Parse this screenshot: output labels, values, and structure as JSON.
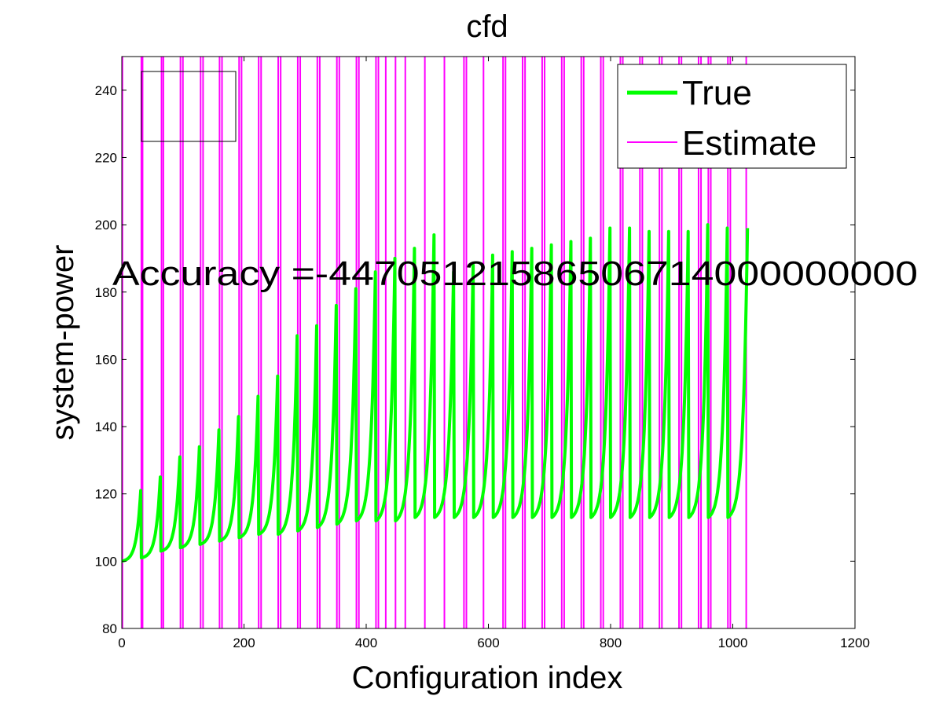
{
  "chart_data": {
    "type": "line",
    "title": "cfd",
    "xlabel": "Configuration index",
    "ylabel": "system-power",
    "xlim": [
      0,
      1200
    ],
    "ylim": [
      80,
      250
    ],
    "xticks": [
      0,
      200,
      400,
      600,
      800,
      1000,
      1200
    ],
    "yticks": [
      80,
      100,
      120,
      140,
      160,
      180,
      200,
      220,
      240
    ],
    "legend_position": "top-right",
    "annotation": "Accuracy =-44705121586506714000000000",
    "series": [
      {
        "name": "True",
        "color": "#00ff00",
        "style": "sawtooth",
        "x_end": 1024,
        "segments": [
          {
            "start": 0,
            "end": 31,
            "low": 100,
            "high": 121
          },
          {
            "start": 32,
            "end": 63,
            "low": 101,
            "high": 125
          },
          {
            "start": 64,
            "end": 95,
            "low": 103,
            "high": 131
          },
          {
            "start": 96,
            "end": 127,
            "low": 104,
            "high": 134
          },
          {
            "start": 128,
            "end": 159,
            "low": 105,
            "high": 139
          },
          {
            "start": 160,
            "end": 191,
            "low": 106,
            "high": 143
          },
          {
            "start": 192,
            "end": 223,
            "low": 107,
            "high": 149
          },
          {
            "start": 224,
            "end": 255,
            "low": 108,
            "high": 155
          },
          {
            "start": 256,
            "end": 287,
            "low": 108,
            "high": 167
          },
          {
            "start": 288,
            "end": 319,
            "low": 109,
            "high": 170
          },
          {
            "start": 320,
            "end": 351,
            "low": 110,
            "high": 176
          },
          {
            "start": 352,
            "end": 383,
            "low": 111,
            "high": 181
          },
          {
            "start": 384,
            "end": 415,
            "low": 112,
            "high": 186
          },
          {
            "start": 416,
            "end": 447,
            "low": 112,
            "high": 190
          },
          {
            "start": 448,
            "end": 479,
            "low": 112,
            "high": 193
          },
          {
            "start": 480,
            "end": 511,
            "low": 113,
            "high": 197
          },
          {
            "start": 512,
            "end": 543,
            "low": 113,
            "high": 186
          },
          {
            "start": 544,
            "end": 575,
            "low": 113,
            "high": 188
          },
          {
            "start": 576,
            "end": 607,
            "low": 113,
            "high": 191
          },
          {
            "start": 608,
            "end": 639,
            "low": 113,
            "high": 192
          },
          {
            "start": 640,
            "end": 671,
            "low": 113,
            "high": 193
          },
          {
            "start": 672,
            "end": 703,
            "low": 113,
            "high": 194
          },
          {
            "start": 704,
            "end": 735,
            "low": 113,
            "high": 195
          },
          {
            "start": 736,
            "end": 767,
            "low": 113,
            "high": 196
          },
          {
            "start": 768,
            "end": 799,
            "low": 113,
            "high": 199
          },
          {
            "start": 800,
            "end": 831,
            "low": 113,
            "high": 199
          },
          {
            "start": 832,
            "end": 863,
            "low": 113,
            "high": 198
          },
          {
            "start": 864,
            "end": 895,
            "low": 113,
            "high": 198
          },
          {
            "start": 896,
            "end": 927,
            "low": 113,
            "high": 198
          },
          {
            "start": 928,
            "end": 959,
            "low": 113,
            "high": 200
          },
          {
            "start": 960,
            "end": 991,
            "low": 113,
            "high": 199
          },
          {
            "start": 992,
            "end": 1024,
            "low": 113,
            "high": 199
          }
        ]
      },
      {
        "name": "Estimate",
        "color": "#ff00ff",
        "style": "vertical-spikes",
        "x": [
          1,
          32,
          34,
          65,
          68,
          96,
          100,
          129,
          133,
          160,
          164,
          192,
          196,
          224,
          228,
          256,
          260,
          288,
          292,
          320,
          324,
          352,
          356,
          384,
          388,
          416,
          420,
          432,
          448,
          464,
          496,
          528,
          560,
          564,
          592,
          624,
          628,
          656,
          660,
          688,
          692,
          720,
          724,
          752,
          756,
          784,
          788,
          816,
          820,
          848,
          852,
          880,
          884,
          912,
          916,
          944,
          948,
          960,
          964,
          992,
          996,
          1022
        ]
      }
    ]
  }
}
